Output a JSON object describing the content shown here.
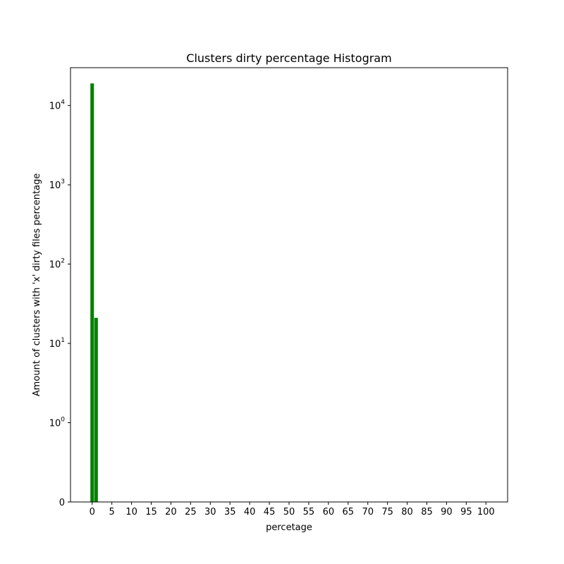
{
  "chart_data": {
    "type": "bar",
    "title": "Clusters dirty percentage Histogram",
    "xlabel": "percetage",
    "ylabel": "Amount of clusters with 'x' dirty files percentage",
    "yscale": "symlog",
    "x_ticks": [
      0,
      5,
      10,
      15,
      20,
      25,
      30,
      35,
      40,
      45,
      50,
      55,
      60,
      65,
      70,
      75,
      80,
      85,
      90,
      95,
      100
    ],
    "x_range": [
      -5.5,
      105.5
    ],
    "y_ticks": [
      {
        "value": 0,
        "base": "0",
        "exp": ""
      },
      {
        "value": 1,
        "base": "10",
        "exp": "0"
      },
      {
        "value": 10,
        "base": "10",
        "exp": "1"
      },
      {
        "value": 100,
        "base": "10",
        "exp": "2"
      },
      {
        "value": 1000,
        "base": "10",
        "exp": "3"
      },
      {
        "value": 10000,
        "base": "10",
        "exp": "4"
      }
    ],
    "bar_color": "#008000",
    "grid": false,
    "bars": [
      {
        "x": 0,
        "value": 19000
      },
      {
        "x": 1,
        "value": 21
      }
    ]
  }
}
